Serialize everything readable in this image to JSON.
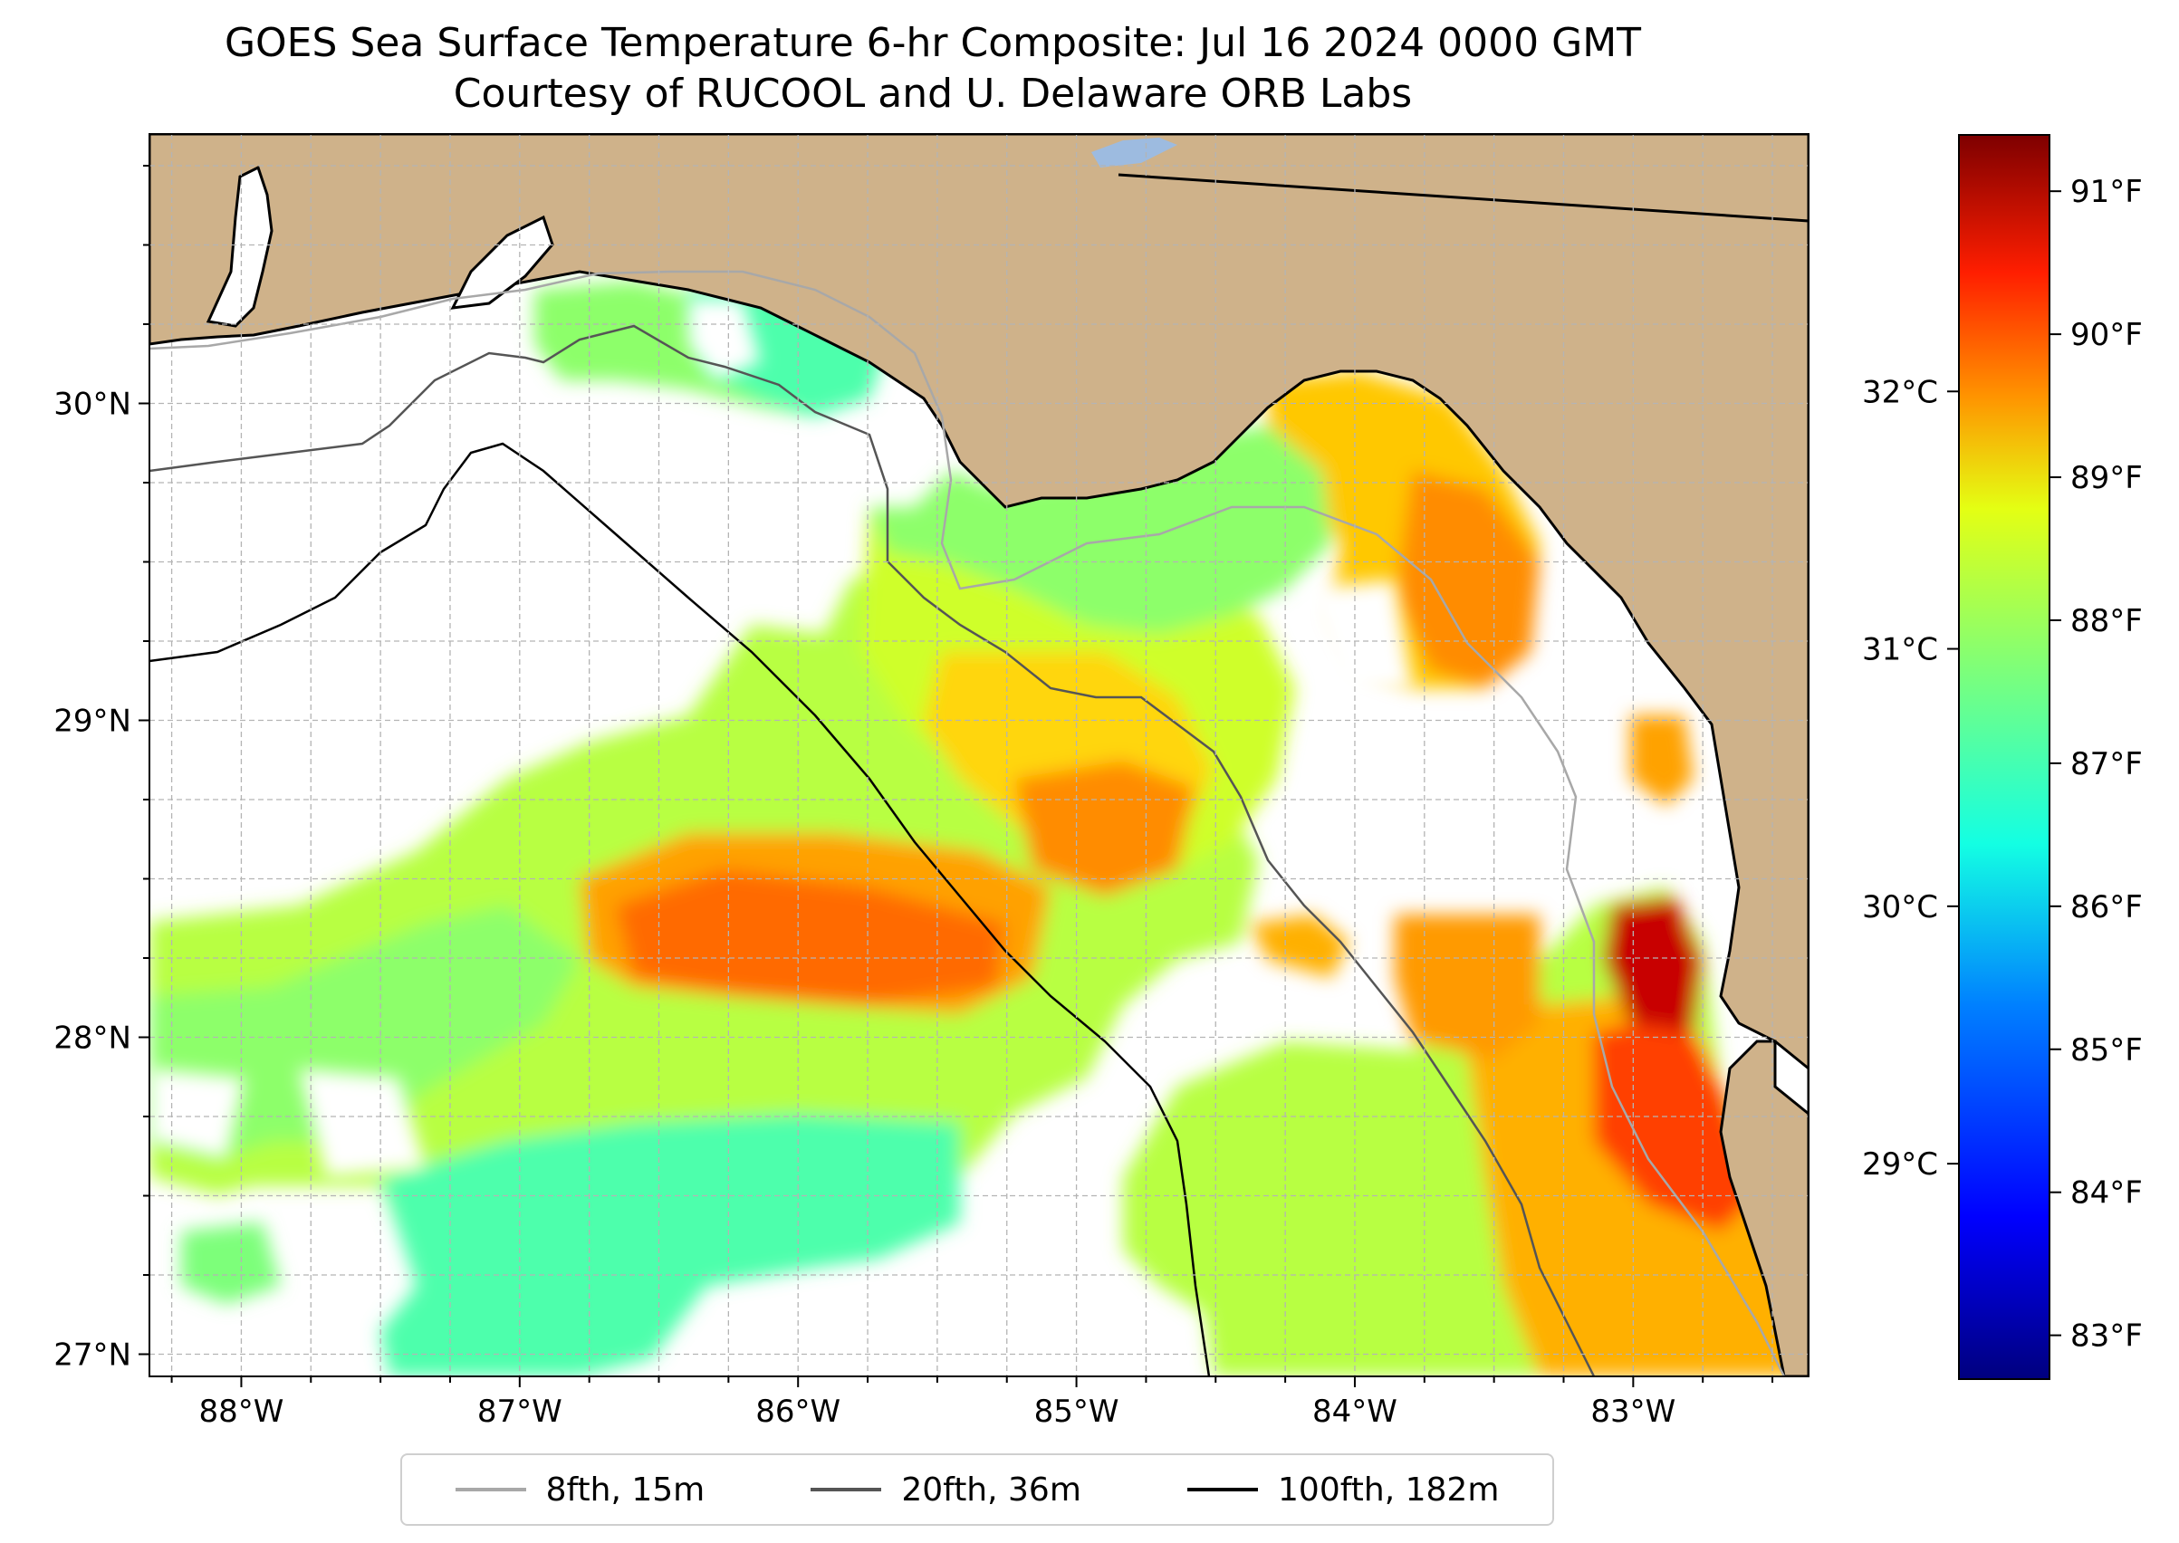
{
  "title": "GOES Sea Surface Temperature 6-hr Composite: Jul 16 2024 0000 GMT",
  "subtitle": "Courtesy of RUCOOL and U. Delaware ORB Labs",
  "map": {
    "lon_range": [
      -88.33,
      -82.37
    ],
    "lat_range": [
      26.93,
      30.85
    ],
    "lon_ticks": [
      {
        "value": -88,
        "label": "88°W"
      },
      {
        "value": -87,
        "label": "87°W"
      },
      {
        "value": -86,
        "label": "86°W"
      },
      {
        "value": -85,
        "label": "85°W"
      },
      {
        "value": -84,
        "label": "84°W"
      },
      {
        "value": -83,
        "label": "83°W"
      }
    ],
    "lat_ticks": [
      {
        "value": 27,
        "label": "27°N"
      },
      {
        "value": 28,
        "label": "28°N"
      },
      {
        "value": 29,
        "label": "29°N"
      },
      {
        "value": 30,
        "label": "30°N"
      }
    ],
    "grid_spacing_deg": 0.25,
    "colors": {
      "land": "#cfb28a",
      "grid": "#b4b4b4",
      "water_missing": "#ffffff"
    }
  },
  "legend": {
    "items": [
      {
        "label": "8fth, 15m",
        "color": "#a8a8a8"
      },
      {
        "label": "20fth, 36m",
        "color": "#555555"
      },
      {
        "label": "100fth, 182m",
        "color": "#000000"
      }
    ]
  },
  "colorbar": {
    "colormap": "jet",
    "f_ticks": [
      "91°F",
      "90°F",
      "89°F",
      "88°F",
      "87°F",
      "86°F",
      "85°F",
      "84°F",
      "83°F"
    ],
    "f_values": [
      91,
      90,
      89,
      88,
      87,
      86,
      85,
      84,
      83
    ],
    "c_ticks": [
      "32°C",
      "31°C",
      "30°C",
      "29°C"
    ],
    "c_values": [
      32,
      31,
      30,
      29
    ],
    "range_f": [
      82.7,
      91.4
    ]
  }
}
